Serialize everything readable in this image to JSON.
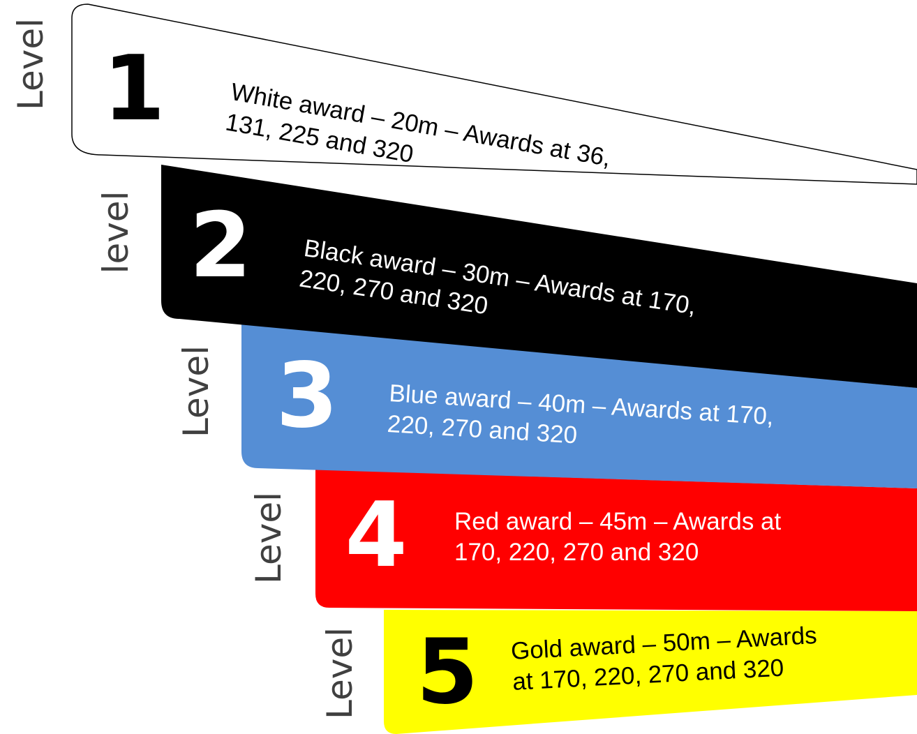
{
  "levels": [
    {
      "label": "Level",
      "number": "1",
      "line1": "White award – 20m – Awards at 36,",
      "line2": "131, 225 and 320",
      "fill": "#ffffff",
      "text_color": "#000000"
    },
    {
      "label": "level",
      "number": "2",
      "line1": "Black award – 30m – Awards at 170,",
      "line2": "220, 270 and 320",
      "fill": "#000000",
      "text_color": "#ffffff"
    },
    {
      "label": "Level",
      "number": "3",
      "line1": "Blue award – 40m – Awards at 170,",
      "line2": "220, 270 and 320",
      "fill": "#558ed5",
      "text_color": "#ffffff"
    },
    {
      "label": "Level",
      "number": "4",
      "line1": "Red award – 45m – Awards at",
      "line2": "170, 220, 270 and 320",
      "fill": "#ff0000",
      "text_color": "#ffffff"
    },
    {
      "label": "Level",
      "number": "5",
      "line1": "Gold award – 50m – Awards",
      "line2": "at 170, 220, 270 and 320",
      "fill": "#ffff00",
      "text_color": "#000000"
    }
  ]
}
